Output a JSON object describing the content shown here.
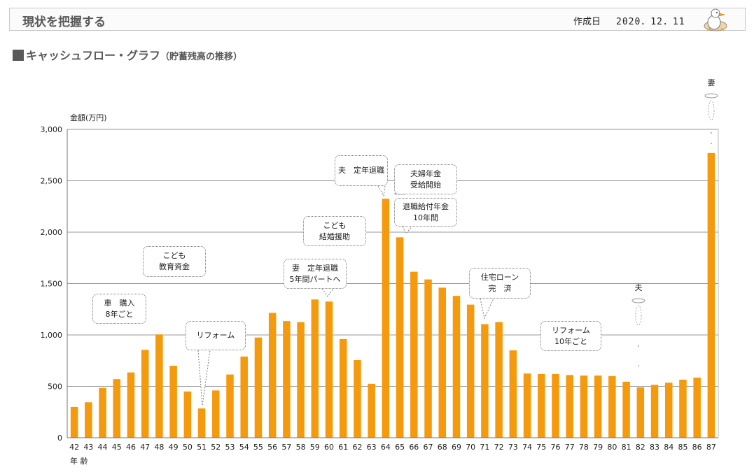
{
  "header": {
    "title": "現状を把握する",
    "date_label": "作成日",
    "date": "2020．12．11"
  },
  "section": {
    "title": "キャッシュフロー・グラフ",
    "subtitle": "（貯蓄残高の推移）"
  },
  "colors": {
    "bar": "#f59a0c",
    "grid": "#999999",
    "header_text": "#595959"
  },
  "chart_data": {
    "type": "bar",
    "ylabel": "金額(万円)",
    "xlabel": "年 齢",
    "ylim": [
      0,
      3000
    ],
    "yticks": [
      "0",
      "500",
      "1,000",
      "1,500",
      "2,000",
      "2,500",
      "3,000"
    ],
    "grid": true,
    "categories": [
      "42",
      "43",
      "44",
      "45",
      "46",
      "47",
      "48",
      "49",
      "50",
      "51",
      "52",
      "53",
      "54",
      "55",
      "56",
      "57",
      "58",
      "59",
      "60",
      "61",
      "62",
      "63",
      "64",
      "65",
      "66",
      "67",
      "68",
      "69",
      "70",
      "71",
      "72",
      "73",
      "74",
      "75",
      "76",
      "77",
      "78",
      "79",
      "80",
      "81",
      "82",
      "83",
      "84",
      "85",
      "86",
      "87"
    ],
    "values": [
      300,
      345,
      485,
      570,
      635,
      855,
      1005,
      700,
      450,
      285,
      460,
      615,
      790,
      975,
      1215,
      1135,
      1125,
      1345,
      1325,
      960,
      755,
      525,
      2325,
      1950,
      1615,
      1540,
      1460,
      1380,
      1295,
      1105,
      1125,
      850,
      625,
      620,
      620,
      610,
      605,
      605,
      600,
      545,
      490,
      515,
      535,
      565,
      585,
      2770
    ],
    "annotations": [
      {
        "text": "車　購入\n8年ごと"
      },
      {
        "text": "こども\n教育資金"
      },
      {
        "text": "リフォーム"
      },
      {
        "text": "妻　定年退職\n5年間パートへ"
      },
      {
        "text": "こども\n結婚援助"
      },
      {
        "text": "夫　定年退職"
      },
      {
        "text": "夫婦年金\n受給開始"
      },
      {
        "text": "退職給付年金\n10年間"
      },
      {
        "text": "住宅ローン\n完　済"
      },
      {
        "text": "リフォーム\n10年ごと"
      }
    ],
    "persons": [
      {
        "text": "夫"
      },
      {
        "text": "妻"
      }
    ]
  }
}
